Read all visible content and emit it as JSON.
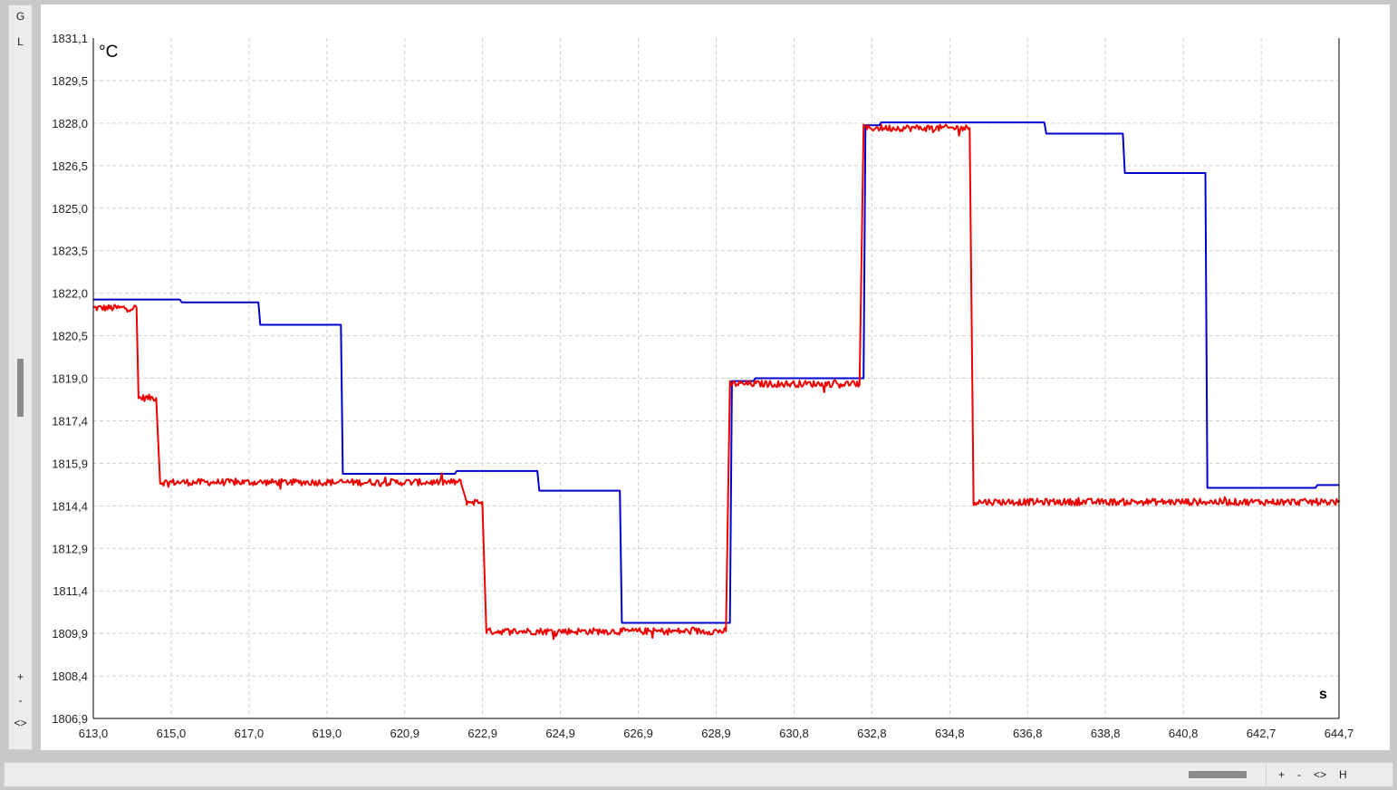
{
  "vertical_toolbar": {
    "g_label": "G",
    "l_label": "L",
    "zoom_in_label": "+",
    "zoom_out_label": "-",
    "fit_label": "<>"
  },
  "horizontal_toolbar": {
    "zoom_in_label": "+",
    "zoom_out_label": "-",
    "fit_label": "<>",
    "h_label": "H"
  },
  "chart_data": {
    "type": "line",
    "title": "",
    "xlabel": "s",
    "ylabel": "°C",
    "xlim": [
      613.0,
      644.7
    ],
    "ylim": [
      1806.9,
      1831.1
    ],
    "x_ticks": [
      "613,0",
      "615,0",
      "617,0",
      "619,0",
      "620,9",
      "622,9",
      "624,9",
      "626,9",
      "628,9",
      "630,8",
      "632,8",
      "634,8",
      "636,8",
      "638,8",
      "640,8",
      "642,7",
      "644,7"
    ],
    "y_ticks": [
      "1806,9",
      "1808,4",
      "1809,9",
      "1811,4",
      "1812,9",
      "1814,4",
      "1815,9",
      "1817,4",
      "1819,0",
      "1820,5",
      "1822,0",
      "1823,5",
      "1825,0",
      "1826,5",
      "1828,0",
      "1829,5",
      "1831,1"
    ],
    "grid": true,
    "legend": "none",
    "series": [
      {
        "color": "#0000cc",
        "noise": 0,
        "points": [
          [
            613.0,
            1821.8
          ],
          [
            615.2,
            1821.8
          ],
          [
            615.25,
            1821.7
          ],
          [
            617.2,
            1821.7
          ],
          [
            617.25,
            1820.9
          ],
          [
            619.3,
            1820.9
          ],
          [
            619.35,
            1815.6
          ],
          [
            622.2,
            1815.6
          ],
          [
            622.25,
            1815.7
          ],
          [
            624.3,
            1815.7
          ],
          [
            624.35,
            1815.0
          ],
          [
            626.4,
            1815.0
          ],
          [
            626.45,
            1810.3
          ],
          [
            629.2,
            1810.3
          ],
          [
            629.25,
            1818.9
          ],
          [
            629.8,
            1818.9
          ],
          [
            629.85,
            1819.0
          ],
          [
            632.6,
            1819.0
          ],
          [
            632.65,
            1828.0
          ],
          [
            633.0,
            1828.0
          ],
          [
            633.05,
            1828.1
          ],
          [
            637.2,
            1828.1
          ],
          [
            637.25,
            1827.7
          ],
          [
            639.2,
            1827.7
          ],
          [
            639.25,
            1826.3
          ],
          [
            641.3,
            1826.3
          ],
          [
            641.35,
            1815.1
          ],
          [
            644.1,
            1815.1
          ],
          [
            644.15,
            1815.2
          ],
          [
            644.7,
            1815.2
          ]
        ]
      },
      {
        "color": "#ee0000",
        "noise": 0.12,
        "points": [
          [
            613.0,
            1821.5
          ],
          [
            614.1,
            1821.5
          ],
          [
            614.15,
            1818.3
          ],
          [
            614.6,
            1818.3
          ],
          [
            614.7,
            1815.3
          ],
          [
            622.2,
            1815.3
          ],
          [
            622.35,
            1815.3
          ],
          [
            622.5,
            1814.6
          ],
          [
            622.9,
            1814.6
          ],
          [
            623.0,
            1810.0
          ],
          [
            629.1,
            1810.0
          ],
          [
            629.2,
            1818.8
          ],
          [
            632.5,
            1818.8
          ],
          [
            632.6,
            1827.9
          ],
          [
            635.3,
            1827.9
          ],
          [
            635.4,
            1814.6
          ],
          [
            644.7,
            1814.6
          ]
        ]
      }
    ]
  }
}
